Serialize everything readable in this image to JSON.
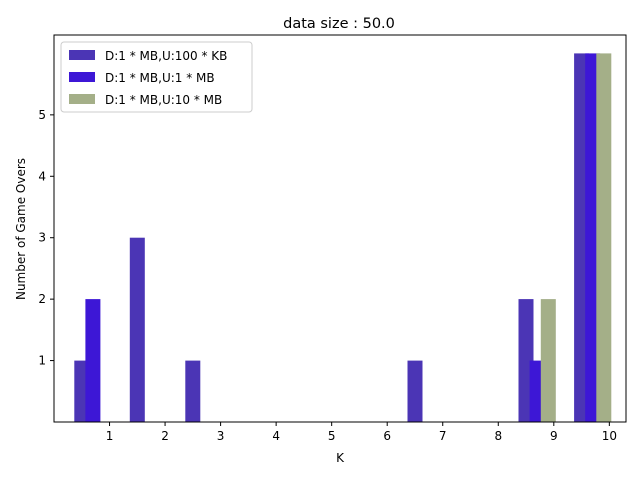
{
  "chart_data": {
    "type": "bar",
    "title": "data size : 50.0",
    "xlabel": "K",
    "ylabel": "Number of Game Overs",
    "xticks": [
      "1",
      "2",
      "3",
      "4",
      "5",
      "6",
      "7",
      "8",
      "9",
      "10"
    ],
    "yticks": [
      "1",
      "2",
      "3",
      "4",
      "5"
    ],
    "xlim": [
      0,
      10.3
    ],
    "ylim": [
      0,
      6.3
    ],
    "grid": false,
    "legend_position": "top-left",
    "series": [
      {
        "name": "D:1 * MB,U:100 * KB",
        "color": "#4b35b5",
        "points": [
          {
            "x": 0.5,
            "y": 1
          },
          {
            "x": 1.5,
            "y": 3
          },
          {
            "x": 2.5,
            "y": 1
          },
          {
            "x": 6.5,
            "y": 1
          },
          {
            "x": 8.5,
            "y": 2
          },
          {
            "x": 9.5,
            "y": 6
          }
        ]
      },
      {
        "name": "D:1 * MB,U:1 * MB",
        "color": "#3d17d6",
        "points": [
          {
            "x": 0.7,
            "y": 2
          },
          {
            "x": 8.7,
            "y": 1
          },
          {
            "x": 9.7,
            "y": 6
          }
        ]
      },
      {
        "name": "D:1 * MB,U:10 * MB",
        "color": "#a4af88",
        "points": [
          {
            "x": 8.9,
            "y": 2
          },
          {
            "x": 9.9,
            "y": 6
          }
        ]
      }
    ]
  }
}
